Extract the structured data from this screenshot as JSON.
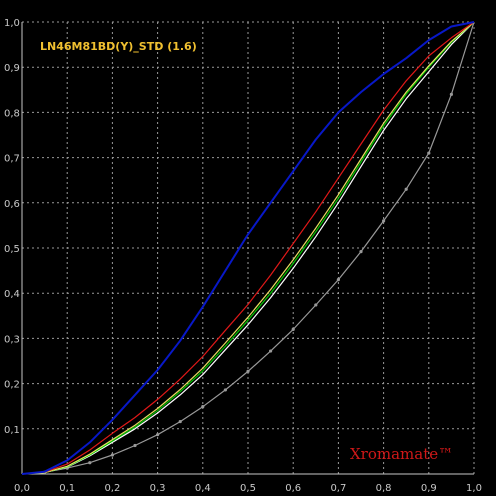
{
  "chart_data": {
    "type": "line",
    "title": "LN46M81BD(Y)_STD (1.6)",
    "watermark": "Xromamate™",
    "xlim": [
      0,
      1
    ],
    "ylim": [
      0,
      1
    ],
    "x_ticks": [
      "0,0",
      "0,1",
      "0,2",
      "0,3",
      "0,4",
      "0,5",
      "0,6",
      "0,7",
      "0,8",
      "0,9",
      "1,0"
    ],
    "y_ticks": [
      "0,0",
      "0,1",
      "0,2",
      "0,3",
      "0,4",
      "0,5",
      "0,6",
      "0,7",
      "0,8",
      "0,9",
      "1,0"
    ],
    "grid": true,
    "background_color": "#000000",
    "series": [
      {
        "color": "#999999",
        "markers": true,
        "x": [
          0,
          0.05,
          0.1,
          0.15,
          0.2,
          0.25,
          0.3,
          0.35,
          0.4,
          0.45,
          0.5,
          0.55,
          0.6,
          0.65,
          0.7,
          0.75,
          0.8,
          0.85,
          0.9,
          0.95,
          1.0
        ],
        "y": [
          0,
          0.004,
          0.013,
          0.025,
          0.042,
          0.063,
          0.087,
          0.116,
          0.149,
          0.186,
          0.227,
          0.272,
          0.32,
          0.374,
          0.43,
          0.492,
          0.56,
          0.63,
          0.71,
          0.84,
          1.0
        ]
      },
      {
        "color": "#ffffff",
        "markers": false,
        "x": [
          0,
          0.05,
          0.1,
          0.15,
          0.2,
          0.25,
          0.3,
          0.35,
          0.4,
          0.45,
          0.5,
          0.55,
          0.6,
          0.65,
          0.7,
          0.75,
          0.8,
          0.85,
          0.9,
          0.95,
          1.0
        ],
        "y": [
          0,
          0.003,
          0.015,
          0.04,
          0.07,
          0.1,
          0.135,
          0.175,
          0.22,
          0.275,
          0.33,
          0.39,
          0.455,
          0.525,
          0.6,
          0.68,
          0.76,
          0.83,
          0.89,
          0.95,
          1.0
        ]
      },
      {
        "color": "#00c800",
        "markers": false,
        "x": [
          0,
          0.05,
          0.1,
          0.15,
          0.2,
          0.25,
          0.3,
          0.35,
          0.4,
          0.45,
          0.5,
          0.55,
          0.6,
          0.65,
          0.7,
          0.75,
          0.8,
          0.85,
          0.9,
          0.95,
          1.0
        ],
        "y": [
          0,
          0.003,
          0.016,
          0.042,
          0.073,
          0.104,
          0.14,
          0.182,
          0.228,
          0.283,
          0.34,
          0.4,
          0.466,
          0.536,
          0.61,
          0.69,
          0.77,
          0.84,
          0.9,
          0.955,
          1.0
        ]
      },
      {
        "color": "#e8e060",
        "markers": false,
        "x": [
          0,
          0.05,
          0.1,
          0.15,
          0.2,
          0.25,
          0.3,
          0.35,
          0.4,
          0.45,
          0.5,
          0.55,
          0.6,
          0.65,
          0.7,
          0.75,
          0.8,
          0.85,
          0.9,
          0.95,
          1.0
        ],
        "y": [
          0,
          0.003,
          0.017,
          0.044,
          0.076,
          0.108,
          0.145,
          0.187,
          0.234,
          0.29,
          0.347,
          0.408,
          0.474,
          0.544,
          0.618,
          0.697,
          0.776,
          0.845,
          0.903,
          0.957,
          1.0
        ]
      },
      {
        "color": "#e01818",
        "markers": false,
        "x": [
          0,
          0.05,
          0.1,
          0.15,
          0.2,
          0.25,
          0.3,
          0.35,
          0.4,
          0.45,
          0.5,
          0.55,
          0.6,
          0.65,
          0.7,
          0.75,
          0.8,
          0.85,
          0.9,
          0.95,
          1.0
        ],
        "y": [
          0,
          0.004,
          0.022,
          0.053,
          0.09,
          0.125,
          0.165,
          0.21,
          0.26,
          0.318,
          0.375,
          0.44,
          0.51,
          0.58,
          0.655,
          0.73,
          0.805,
          0.87,
          0.925,
          0.965,
          1.0
        ]
      },
      {
        "color": "#0818c8",
        "markers": false,
        "x": [
          0,
          0.05,
          0.1,
          0.15,
          0.2,
          0.25,
          0.3,
          0.35,
          0.4,
          0.45,
          0.5,
          0.55,
          0.6,
          0.65,
          0.7,
          0.75,
          0.8,
          0.85,
          0.9,
          0.95,
          1.0
        ],
        "y": [
          0,
          0.005,
          0.03,
          0.07,
          0.12,
          0.175,
          0.23,
          0.295,
          0.37,
          0.45,
          0.53,
          0.6,
          0.67,
          0.74,
          0.8,
          0.845,
          0.885,
          0.92,
          0.96,
          0.99,
          1.0
        ]
      }
    ]
  }
}
